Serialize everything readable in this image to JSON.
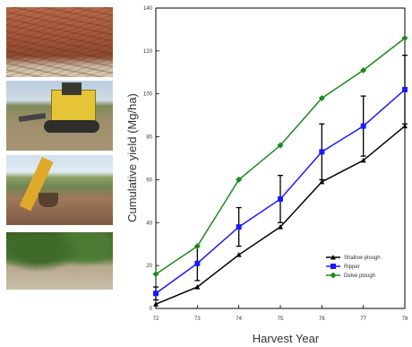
{
  "chart_data": {
    "type": "line",
    "xlabel": "Harvest Year",
    "ylabel": "Cumulative yield (Mg/ha)",
    "xticks": [
      "72",
      "73",
      "74",
      "75",
      "76",
      "77",
      "78"
    ],
    "ylim": [
      0,
      140
    ],
    "yticks": [
      "0",
      "20",
      "40",
      "60",
      "80",
      "100",
      "120",
      "140"
    ],
    "grid": false,
    "legend_position": "bottom-right",
    "series": [
      {
        "name": "Shallow plough",
        "color": "#000000",
        "marker": "triangle",
        "x": [
          72,
          73,
          74,
          75,
          76,
          77,
          78
        ],
        "y": [
          2,
          10,
          25,
          38,
          59,
          69,
          85
        ]
      },
      {
        "name": "Ripper",
        "color": "#1a1aff",
        "marker": "square",
        "x": [
          72,
          73,
          74,
          75,
          76,
          77,
          78
        ],
        "y": [
          7,
          21,
          38,
          51,
          73,
          85,
          102
        ],
        "error": [
          3,
          8,
          9,
          11,
          13,
          14,
          16
        ]
      },
      {
        "name": "Delve plough",
        "color": "#1a8a1a",
        "marker": "diamond",
        "x": [
          72,
          73,
          74,
          75,
          76,
          77,
          78
        ],
        "y": [
          16,
          29,
          60,
          76,
          98,
          111,
          126
        ]
      }
    ]
  },
  "photos": [
    {
      "name": "soil-profile-photo"
    },
    {
      "name": "bulldozer-ripper-photo"
    },
    {
      "name": "excavator-photo"
    },
    {
      "name": "vineyard-photo"
    }
  ]
}
